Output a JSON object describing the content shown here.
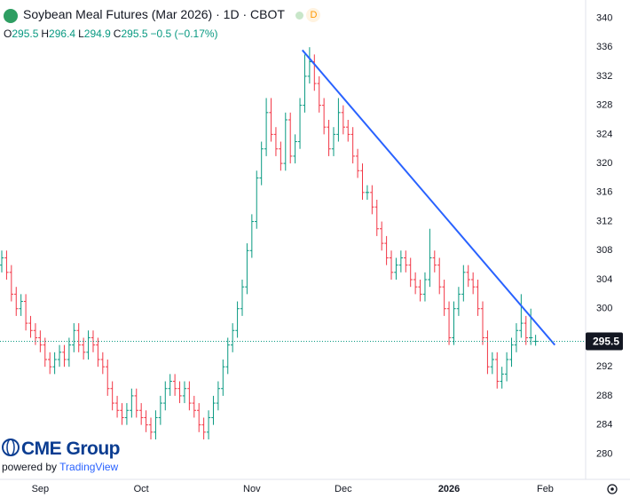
{
  "chart_data": {
    "type": "ohlc",
    "title": "Soybean Meal Futures (Mar 2026) · 1D · CBOT",
    "badge": "D",
    "legend_labels": [
      "O",
      "H",
      "L",
      "C"
    ],
    "change": "−0.5 (−0.17%)",
    "logo": "CME Group",
    "powered_by": "powered by",
    "platform": "TradingView",
    "categories": [
      null,
      null,
      null,
      null,
      null,
      null,
      null,
      null,
      "Sep",
      null,
      null,
      null,
      null,
      null,
      null,
      null,
      null,
      null,
      null,
      null,
      null,
      null,
      null,
      null,
      null,
      null,
      null,
      null,
      null,
      "Oct",
      null,
      null,
      null,
      null,
      null,
      null,
      null,
      null,
      null,
      null,
      null,
      null,
      null,
      null,
      null,
      null,
      null,
      null,
      null,
      null,
      null,
      null,
      "Nov",
      null,
      null,
      null,
      null,
      null,
      null,
      null,
      null,
      null,
      null,
      null,
      null,
      null,
      null,
      null,
      null,
      null,
      null,
      "Dec",
      null,
      null,
      null,
      null,
      null,
      null,
      null,
      null,
      null,
      null,
      null,
      null,
      null,
      null,
      null,
      null,
      null,
      null,
      null,
      null,
      null,
      "2026",
      null,
      null,
      null,
      null,
      null,
      null,
      null,
      null,
      null,
      null,
      null,
      null,
      null,
      null,
      null,
      null,
      null,
      null,
      null,
      "Feb",
      null,
      null
    ],
    "open": [
      306,
      307,
      305,
      302,
      300,
      301,
      298,
      297,
      296,
      295,
      293,
      292,
      293,
      294,
      293,
      295,
      297,
      295,
      294,
      296,
      295,
      293,
      292,
      289,
      287,
      286,
      285,
      286,
      288,
      286,
      285,
      284,
      283,
      285,
      287,
      289,
      290,
      289,
      288,
      289,
      287,
      286,
      284,
      283,
      285,
      287,
      289,
      292,
      295,
      297,
      300,
      303,
      308,
      312,
      318,
      322,
      327,
      324,
      322,
      320,
      326,
      321,
      323,
      328,
      332,
      334,
      331,
      328,
      325,
      322,
      324,
      327,
      325,
      324,
      321,
      319,
      316,
      316,
      314,
      311,
      309,
      307,
      305,
      306,
      307,
      306,
      304,
      303,
      302,
      304,
      307,
      306,
      303,
      300,
      296,
      300,
      302,
      305,
      304,
      303,
      300,
      296,
      292,
      293,
      290,
      291,
      293,
      295,
      297,
      298,
      296,
      295.5,
      null,
      null,
      null,
      null
    ],
    "high": [
      308,
      308,
      306,
      303,
      302,
      302,
      299,
      298,
      297,
      296,
      294,
      294,
      295,
      295,
      296,
      298,
      298,
      296,
      297,
      297,
      296,
      294,
      293,
      290,
      288,
      287,
      287,
      289,
      289,
      287,
      286,
      285,
      286,
      288,
      290,
      291,
      291,
      290,
      290,
      290,
      288,
      287,
      285,
      286,
      288,
      290,
      293,
      296,
      298,
      301,
      304,
      309,
      313,
      319,
      323,
      329,
      329,
      325,
      323,
      327,
      327,
      324,
      329,
      335,
      336,
      335,
      332,
      329,
      326,
      325,
      329,
      328,
      326,
      325,
      322,
      320,
      317,
      317,
      315,
      312,
      310,
      308,
      307,
      308,
      308,
      307,
      305,
      304,
      305,
      311,
      308,
      307,
      304,
      301,
      301,
      303,
      306,
      306,
      305,
      304,
      301,
      297,
      294,
      294,
      292,
      294,
      296,
      298,
      302,
      299,
      300,
      296.4,
      null,
      null,
      null,
      null
    ],
    "low": [
      305,
      304,
      301,
      299,
      299,
      297,
      296,
      295,
      294,
      292,
      291,
      291,
      292,
      292,
      292,
      294,
      294,
      293,
      293,
      294,
      292,
      291,
      288,
      286,
      285,
      284,
      284,
      285,
      285,
      284,
      283,
      282,
      282,
      284,
      286,
      288,
      288,
      287,
      287,
      286,
      285,
      283,
      282,
      282,
      284,
      286,
      288,
      291,
      294,
      296,
      299,
      302,
      307,
      311,
      317,
      321,
      323,
      321,
      319,
      319,
      320,
      320,
      322,
      327,
      331,
      330,
      327,
      324,
      321,
      321,
      323,
      324,
      323,
      320,
      318,
      315,
      315,
      313,
      310,
      308,
      306,
      304,
      304,
      305,
      305,
      303,
      302,
      301,
      301,
      303,
      305,
      302,
      299,
      295,
      295,
      299,
      301,
      303,
      302,
      299,
      295,
      291,
      291,
      289,
      289,
      290,
      292,
      294,
      296,
      295,
      295,
      294.9,
      null,
      null,
      null,
      null
    ],
    "close": [
      307,
      305,
      302,
      300,
      301,
      298,
      297,
      296,
      295,
      293,
      292,
      293,
      294,
      293,
      295,
      297,
      295,
      294,
      296,
      295,
      293,
      292,
      289,
      287,
      286,
      285,
      286,
      288,
      286,
      285,
      284,
      283,
      285,
      287,
      289,
      290,
      289,
      288,
      289,
      287,
      286,
      284,
      283,
      285,
      287,
      289,
      292,
      295,
      297,
      300,
      303,
      308,
      312,
      318,
      322,
      327,
      324,
      322,
      320,
      326,
      321,
      323,
      328,
      332,
      334,
      331,
      328,
      325,
      322,
      324,
      327,
      325,
      324,
      321,
      319,
      316,
      316,
      314,
      311,
      309,
      307,
      305,
      306,
      307,
      306,
      304,
      303,
      302,
      304,
      307,
      306,
      303,
      300,
      296,
      300,
      302,
      305,
      304,
      303,
      300,
      296,
      292,
      293,
      290,
      291,
      293,
      295,
      297,
      298,
      296,
      296,
      295.5,
      null,
      null,
      null,
      null
    ],
    "up_color": "#089981",
    "down_color": "#f23645",
    "trendline": {
      "x": [
        62.5,
        115
      ],
      "y": [
        335.6,
        295
      ],
      "color": "#2962ff"
    },
    "price_line": true,
    "ylim": [
      276.5,
      342.5
    ],
    "yticks": [
      280,
      284,
      288,
      292,
      296,
      300,
      304,
      308,
      312,
      316,
      320,
      324,
      328,
      332,
      336,
      340
    ],
    "grid": false
  }
}
